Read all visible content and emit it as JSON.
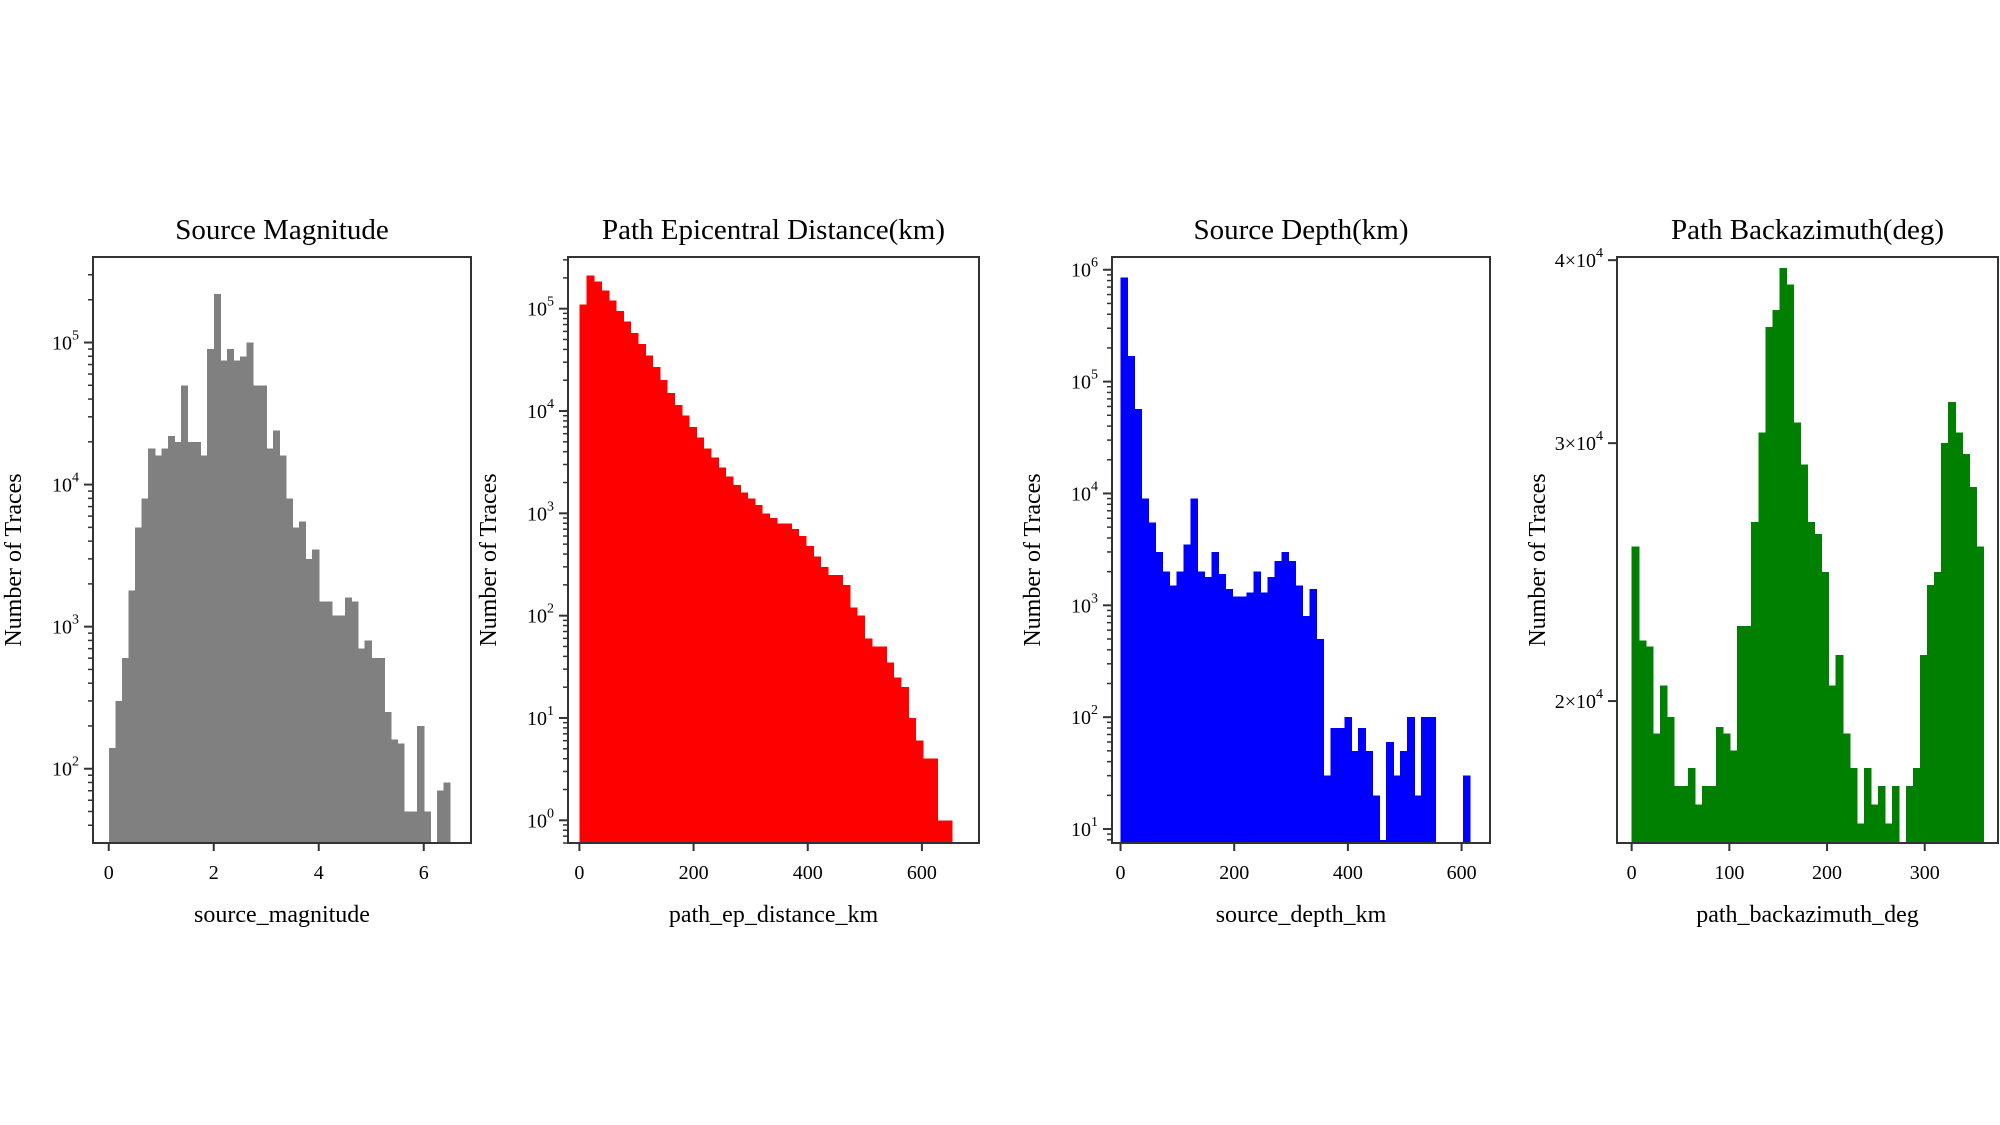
{
  "chart_data": [
    {
      "type": "bar",
      "title": "Source Magnitude",
      "xlabel": "source_magnitude",
      "ylabel": "Number of Traces",
      "color": "#808080",
      "yscale": "log",
      "xlim": [
        -0.3,
        6.9
      ],
      "ylim": [
        30,
        400000
      ],
      "xticks": [
        0,
        2,
        4,
        6
      ],
      "yticks": [
        {
          "value": 100,
          "label": "10",
          "sup": "2"
        },
        {
          "value": 1000,
          "label": "10",
          "sup": "3"
        },
        {
          "value": 10000,
          "label": "10",
          "sup": "4"
        },
        {
          "value": 100000,
          "label": "10",
          "sup": "5"
        }
      ],
      "bin_width": 0.125,
      "x": [
        0.0,
        0.125,
        0.25,
        0.375,
        0.5,
        0.625,
        0.75,
        0.875,
        1.0,
        1.125,
        1.25,
        1.375,
        1.5,
        1.625,
        1.75,
        1.875,
        2.0,
        2.125,
        2.25,
        2.375,
        2.5,
        2.625,
        2.75,
        2.875,
        3.0,
        3.125,
        3.25,
        3.375,
        3.5,
        3.625,
        3.75,
        3.875,
        4.0,
        4.125,
        4.25,
        4.375,
        4.5,
        4.625,
        4.75,
        4.875,
        5.0,
        5.125,
        5.25,
        5.375,
        5.5,
        5.625,
        5.75,
        5.875,
        6.0,
        6.125,
        6.25,
        6.375
      ],
      "values": [
        140,
        300,
        600,
        1800,
        5000,
        8000,
        18000,
        16000,
        18000,
        22000,
        20000,
        50000,
        20000,
        20000,
        16000,
        90000,
        220000,
        75000,
        90000,
        75000,
        80000,
        100000,
        50000,
        50000,
        18000,
        24000,
        16000,
        8000,
        5000,
        5500,
        3000,
        3500,
        1500,
        1500,
        1200,
        1200,
        1600,
        1500,
        700,
        800,
        600,
        600,
        250,
        160,
        150,
        50,
        50,
        200,
        50,
        0,
        70,
        80
      ]
    },
    {
      "type": "bar",
      "title": "Path Epicentral Distance(km)",
      "xlabel": "path_ep_distance_km",
      "ylabel": "Number of Traces",
      "color": "#ff0000",
      "yscale": "log",
      "xlim": [
        -20,
        700
      ],
      "ylim": [
        0.6,
        320000
      ],
      "xticks": [
        0,
        200,
        400,
        600
      ],
      "yticks": [
        {
          "value": 1,
          "label": "10",
          "sup": "0"
        },
        {
          "value": 10,
          "label": "10",
          "sup": "1"
        },
        {
          "value": 100,
          "label": "10",
          "sup": "2"
        },
        {
          "value": 1000,
          "label": "10",
          "sup": "3"
        },
        {
          "value": 10000,
          "label": "10",
          "sup": "4"
        },
        {
          "value": 100000,
          "label": "10",
          "sup": "5"
        }
      ],
      "bin_width": 12.8,
      "x": [
        0,
        12.8,
        25.6,
        38.4,
        51.2,
        64.0,
        76.8,
        89.6,
        102.4,
        115.2,
        128.0,
        140.8,
        153.6,
        166.4,
        179.2,
        192.0,
        204.8,
        217.6,
        230.4,
        243.2,
        256.0,
        268.8,
        281.6,
        294.4,
        307.2,
        320.0,
        332.8,
        345.6,
        358.4,
        371.2,
        384.0,
        396.8,
        409.6,
        422.4,
        435.2,
        448.0,
        460.8,
        473.6,
        486.4,
        499.2,
        512.0,
        524.8,
        537.6,
        550.4,
        563.2,
        576.0,
        588.8,
        601.6,
        614.4,
        627.2,
        640.0
      ],
      "values": [
        110000,
        210000,
        185000,
        150000,
        120000,
        95000,
        75000,
        58000,
        45000,
        35000,
        27000,
        20000,
        15000,
        11500,
        9000,
        7000,
        5500,
        4300,
        3500,
        2800,
        2300,
        1900,
        1600,
        1400,
        1200,
        1000,
        900,
        800,
        800,
        700,
        600,
        480,
        380,
        300,
        250,
        250,
        200,
        120,
        100,
        60,
        50,
        50,
        35,
        25,
        20,
        10,
        6,
        4,
        4,
        1,
        1
      ]
    },
    {
      "type": "bar",
      "title": "Source Depth(km)",
      "xlabel": "source_depth_km",
      "ylabel": "Number of Traces",
      "color": "#0000ff",
      "yscale": "log",
      "xlim": [
        -15,
        650
      ],
      "ylim": [
        7.5,
        1300000
      ],
      "xticks": [
        0,
        200,
        400,
        600
      ],
      "yticks": [
        {
          "value": 10,
          "label": "10",
          "sup": "1"
        },
        {
          "value": 100,
          "label": "10",
          "sup": "2"
        },
        {
          "value": 1000,
          "label": "10",
          "sup": "3"
        },
        {
          "value": 10000,
          "label": "10",
          "sup": "4"
        },
        {
          "value": 100000,
          "label": "10",
          "sup": "5"
        },
        {
          "value": 1000000,
          "label": "10",
          "sup": "6"
        }
      ],
      "bin_width": 12.3,
      "x": [
        0,
        12.3,
        24.6,
        36.9,
        49.2,
        61.5,
        73.8,
        86.1,
        98.4,
        110.7,
        123.0,
        135.3,
        147.6,
        159.9,
        172.2,
        184.5,
        196.8,
        209.1,
        221.4,
        233.7,
        246.0,
        258.3,
        270.6,
        282.9,
        295.2,
        307.5,
        319.8,
        332.1,
        344.4,
        356.7,
        369.0,
        381.3,
        393.6,
        405.9,
        418.2,
        430.5,
        442.8,
        455.1,
        467.4,
        479.7,
        492.0,
        504.3,
        516.6,
        528.9,
        541.2,
        553.5,
        565.8,
        578.1,
        590.4,
        602.7
      ],
      "values": [
        850000,
        170000,
        57000,
        9000,
        5500,
        3000,
        2000,
        1500,
        2000,
        3500,
        9000,
        2000,
        1800,
        3000,
        1900,
        1400,
        1200,
        1200,
        1300,
        2000,
        1300,
        1800,
        2500,
        3000,
        2500,
        1500,
        800,
        1400,
        500,
        30,
        80,
        80,
        100,
        50,
        80,
        50,
        20,
        8,
        60,
        30,
        50,
        100,
        20,
        100,
        100,
        0,
        0,
        0,
        0,
        30
      ]
    },
    {
      "type": "bar",
      "title": "Path Backazimuth(deg)",
      "xlabel": "path_backazimuth_deg",
      "ylabel": "Number of Traces",
      "color": "#008000",
      "yscale": "log",
      "xlim": [
        -15,
        375
      ],
      "ylim": [
        16000,
        40200
      ],
      "xticks": [
        0,
        100,
        200,
        300
      ],
      "yticks": [
        {
          "value": 20000,
          "label": "2×10",
          "sup": "4"
        },
        {
          "value": 30000,
          "label": "3×10",
          "sup": "4"
        },
        {
          "value": 40000,
          "label": "4×10",
          "sup": "4"
        }
      ],
      "bin_width": 7.2,
      "x": [
        0,
        7.2,
        14.4,
        21.6,
        28.8,
        36.0,
        43.2,
        50.4,
        57.6,
        64.8,
        72.0,
        79.2,
        86.4,
        93.6,
        100.8,
        108.0,
        115.2,
        122.4,
        129.6,
        136.8,
        144.0,
        151.2,
        158.4,
        165.6,
        172.8,
        180.0,
        187.2,
        194.4,
        201.6,
        208.8,
        216.0,
        223.2,
        230.4,
        237.6,
        244.8,
        252.0,
        259.2,
        266.4,
        273.6,
        280.8,
        288.0,
        295.2,
        302.4,
        309.6,
        316.8,
        324.0,
        331.2,
        338.4,
        345.6,
        352.8
      ],
      "values": [
        25500,
        22000,
        21800,
        19000,
        20500,
        19500,
        17500,
        17500,
        18000,
        17000,
        17500,
        17500,
        19200,
        19000,
        18500,
        22500,
        22500,
        26500,
        30500,
        36000,
        37000,
        39500,
        38500,
        31000,
        29000,
        26500,
        26000,
        24500,
        20500,
        21500,
        19000,
        18000,
        16500,
        18000,
        17000,
        17500,
        16500,
        17500,
        16000,
        17500,
        18000,
        21500,
        24000,
        24500,
        30000,
        32000,
        30500,
        29500,
        28000,
        25500
      ]
    }
  ]
}
